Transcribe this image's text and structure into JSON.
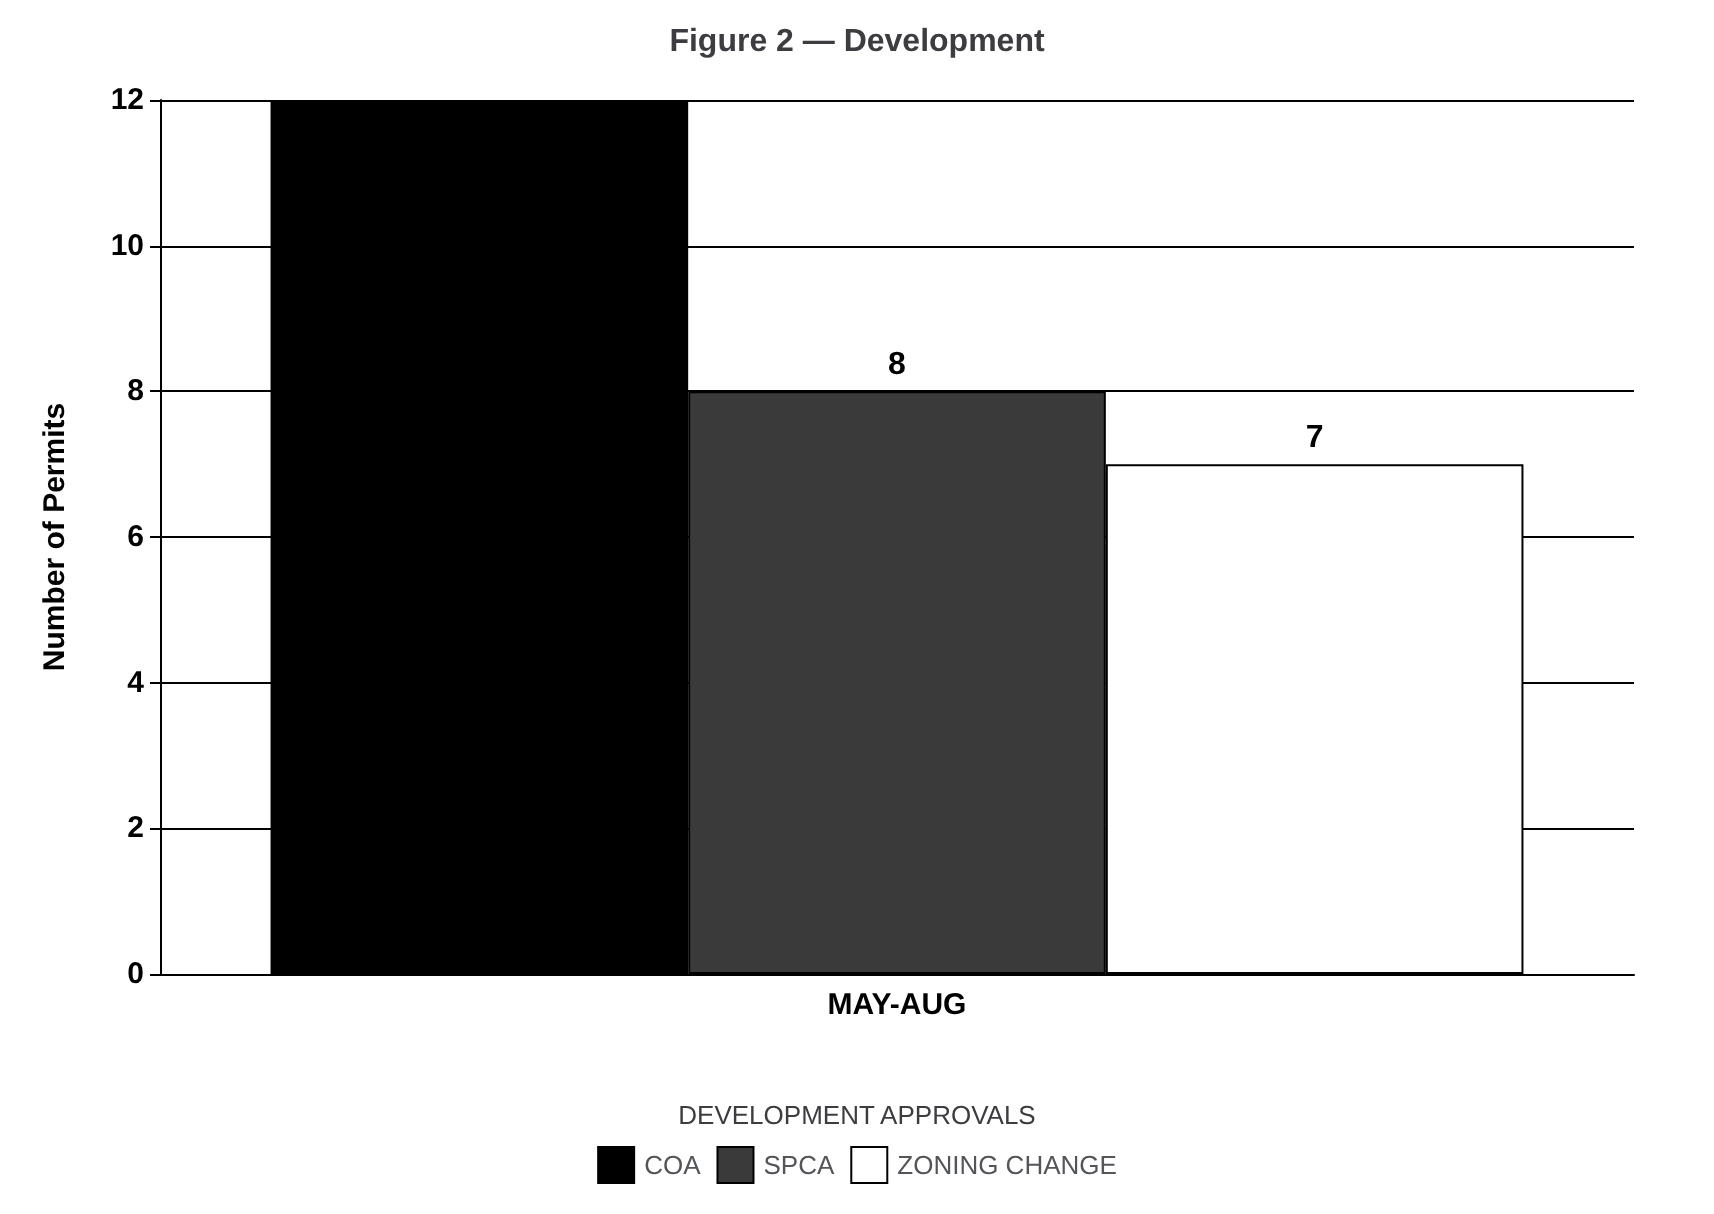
{
  "chart_data": {
    "type": "bar",
    "title": "Figure 2 — Development",
    "ylabel": "Number of Permits",
    "legend_title": "DEVELOPMENT APPROVALS",
    "categories": [
      "MAY-AUG"
    ],
    "series": [
      {
        "name": "COA",
        "color": "#000000",
        "values": [
          12
        ],
        "value_labels": [
          null
        ]
      },
      {
        "name": "SPCA",
        "color": "#3a3a3a",
        "values": [
          8
        ],
        "value_labels": [
          "8"
        ]
      },
      {
        "name": "ZONING CHANGE",
        "color": "#ffffff",
        "values": [
          7
        ],
        "value_labels": [
          "7"
        ]
      }
    ],
    "ylim": [
      0,
      12
    ],
    "yticks": [
      0,
      2,
      4,
      6,
      8,
      10,
      12
    ],
    "grid": "y",
    "legend": "bottom"
  }
}
